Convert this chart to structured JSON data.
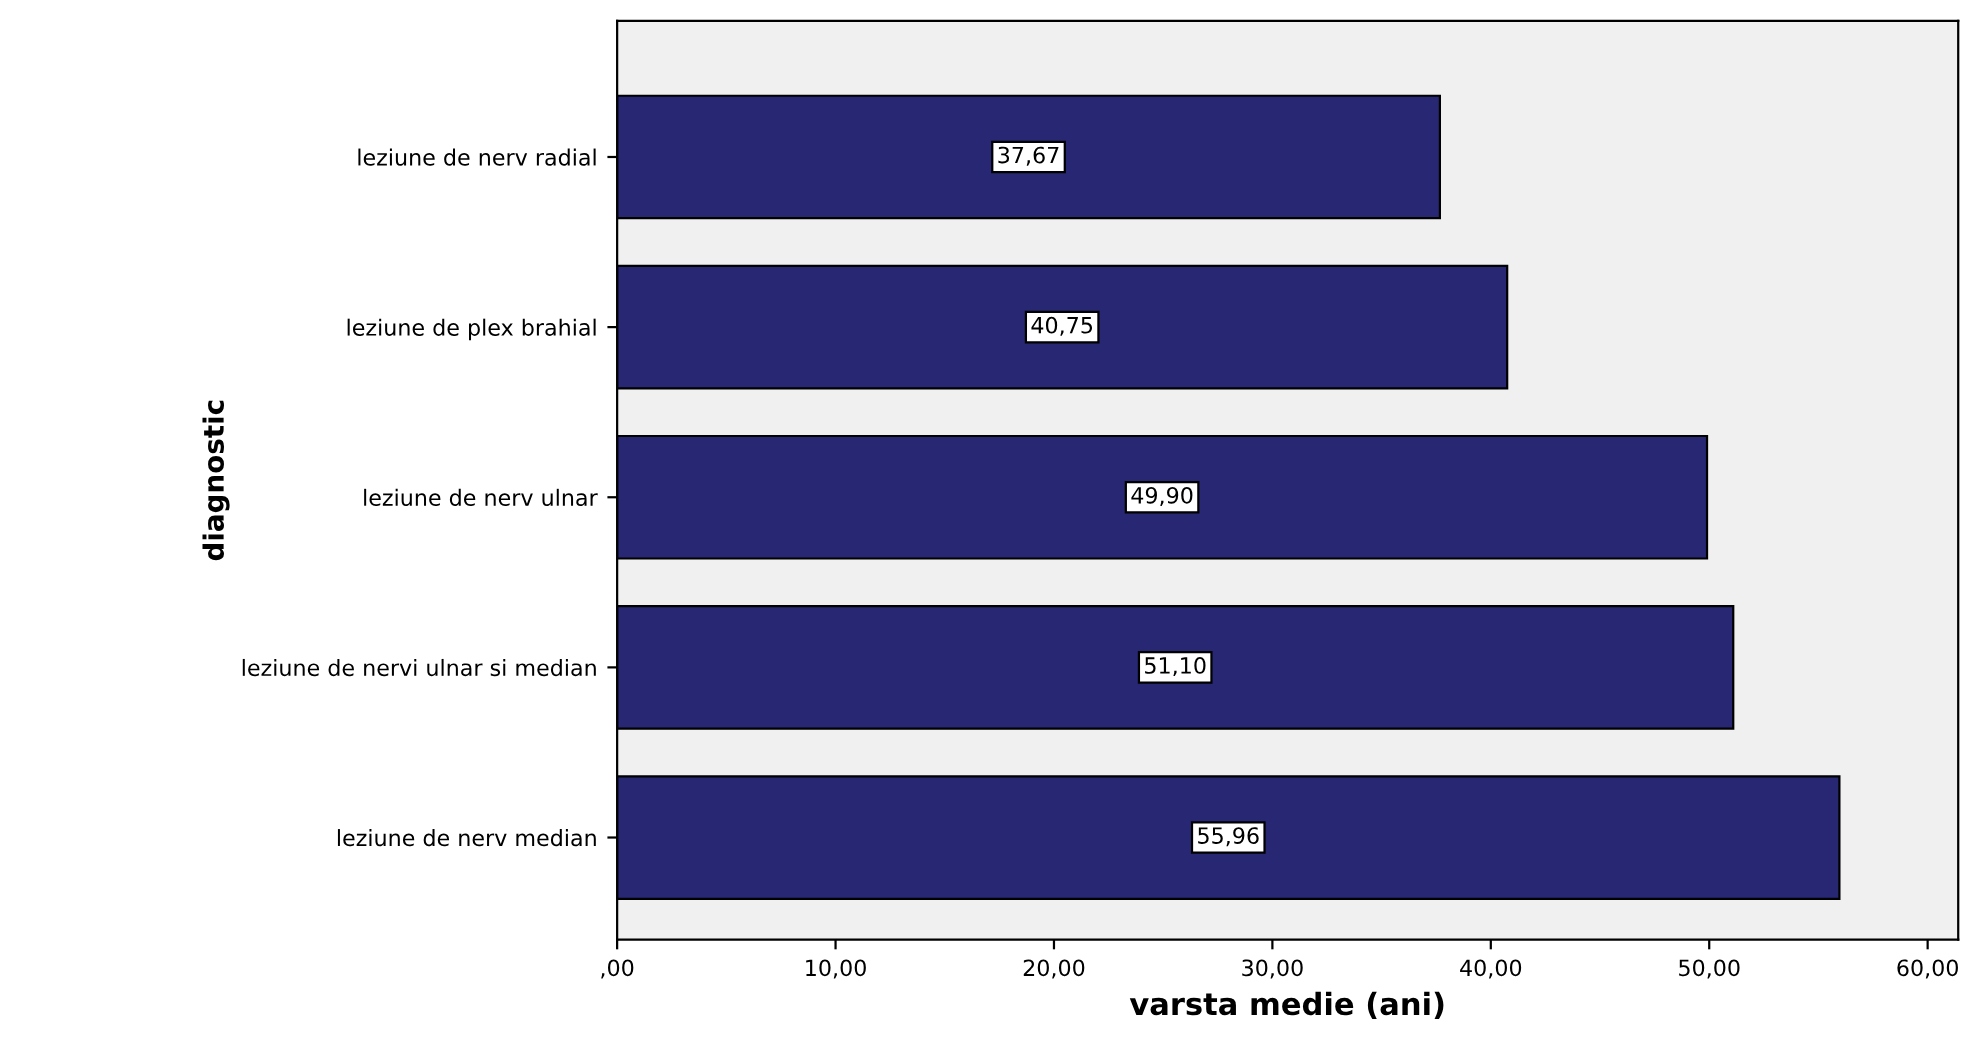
{
  "chart_data": {
    "type": "bar",
    "orientation": "horizontal",
    "categories": [
      "leziune de nerv radial",
      "leziune de plex brahial",
      "leziune de nerv ulnar",
      "leziune de nervi ulnar si median",
      "leziune de nerv median"
    ],
    "values": [
      37.67,
      40.75,
      49.9,
      51.1,
      55.96
    ],
    "value_labels": [
      "37,67",
      "40,75",
      "49,90",
      "51,10",
      "55,96"
    ],
    "color": "#272774",
    "xlim": [
      0,
      61.4
    ],
    "xticks": [
      {
        "value": 0,
        "label": ",00"
      },
      {
        "value": 10,
        "label": "10,00"
      },
      {
        "value": 20,
        "label": "20,00"
      },
      {
        "value": 30,
        "label": "30,00"
      },
      {
        "value": 40,
        "label": "40,00"
      },
      {
        "value": 50,
        "label": "50,00"
      },
      {
        "value": 60,
        "label": "60,00"
      }
    ],
    "xlabel": "varsta medie (ani)",
    "ylabel": "diagnostic",
    "grid": false,
    "legend": false
  }
}
